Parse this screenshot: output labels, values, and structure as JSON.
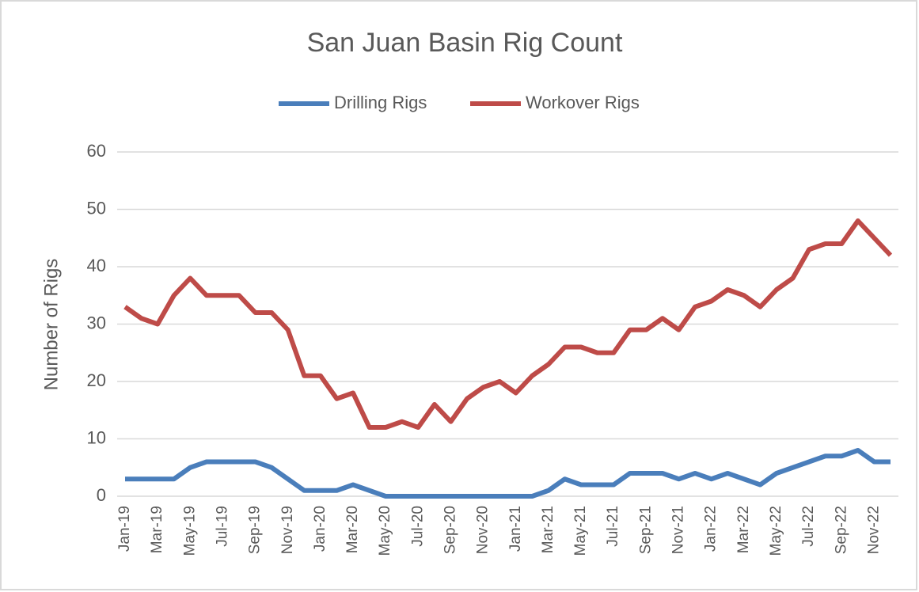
{
  "chart_data": {
    "type": "line",
    "title": "San Juan Basin Rig Count",
    "ylabel": "Number of Rigs",
    "categories": [
      "Jan-19",
      null,
      "Mar-19",
      null,
      "May-19",
      null,
      "Jul-19",
      null,
      "Sep-19",
      null,
      "Nov-19",
      null,
      "Jan-20",
      null,
      "Mar-20",
      null,
      "May-20",
      null,
      "Jul-20",
      null,
      "Sep-20",
      null,
      "Nov-20",
      null,
      "Jan-21",
      null,
      "Mar-21",
      null,
      "May-21",
      null,
      "Jul-21",
      null,
      "Sep-21",
      null,
      "Nov-21",
      null,
      "Jan-22",
      null,
      "Mar-22",
      null,
      "May-22",
      null,
      "Jul-22",
      null,
      "Sep-22",
      null,
      "Nov-22",
      null
    ],
    "series": [
      {
        "name": "Drilling Rigs",
        "color": "#4a7ebb",
        "values": [
          3,
          3,
          3,
          3,
          5,
          6,
          6,
          6,
          6,
          5,
          3,
          1,
          1,
          1,
          2,
          1,
          0,
          0,
          0,
          0,
          0,
          0,
          0,
          0,
          0,
          0,
          1,
          3,
          2,
          2,
          2,
          4,
          4,
          4,
          3,
          4,
          3,
          4,
          3,
          2,
          4,
          5,
          6,
          7,
          7,
          8,
          6,
          6
        ]
      },
      {
        "name": "Workover Rigs",
        "color": "#be4b48",
        "values": [
          33,
          31,
          30,
          35,
          38,
          35,
          35,
          35,
          32,
          32,
          29,
          21,
          21,
          17,
          18,
          12,
          12,
          13,
          12,
          16,
          13,
          17,
          19,
          20,
          18,
          21,
          23,
          26,
          26,
          25,
          25,
          29,
          29,
          31,
          29,
          33,
          34,
          36,
          35,
          33,
          36,
          38,
          43,
          44,
          44,
          48,
          45,
          42
        ]
      }
    ],
    "ylim": [
      0,
      60
    ],
    "yticks": [
      0,
      10,
      20,
      30,
      40,
      50,
      60
    ],
    "grid": true,
    "legend": "top"
  }
}
